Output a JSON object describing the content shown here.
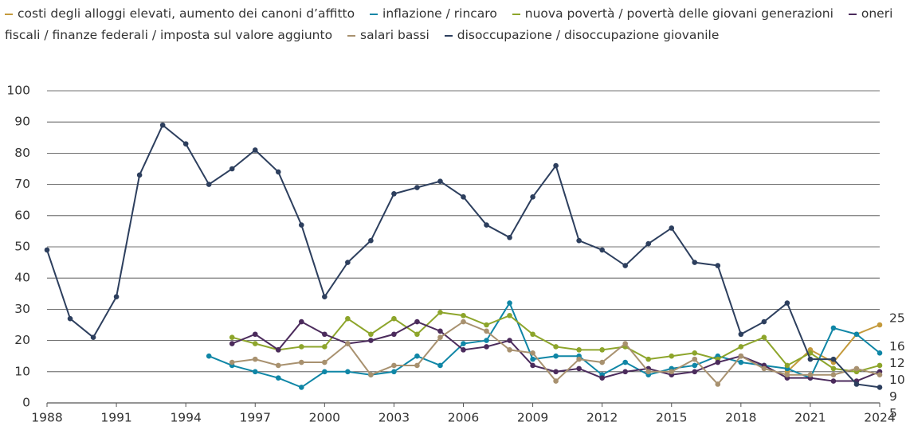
{
  "chart_data": {
    "type": "line",
    "x": [
      1988,
      1989,
      1990,
      1991,
      1992,
      1993,
      1994,
      1995,
      1996,
      1997,
      1998,
      1999,
      2000,
      2001,
      2002,
      2003,
      2004,
      2005,
      2006,
      2007,
      2008,
      2009,
      2010,
      2011,
      2012,
      2013,
      2014,
      2015,
      2016,
      2017,
      2018,
      2019,
      2020,
      2021,
      2022,
      2023,
      2024
    ],
    "xlim": [
      1988,
      2024
    ],
    "xticks": [
      1988,
      1991,
      1994,
      1997,
      2000,
      2003,
      2006,
      2009,
      2012,
      2015,
      2018,
      2021,
      2024
    ],
    "ylim": [
      0,
      100
    ],
    "yticks": [
      0,
      10,
      20,
      30,
      40,
      50,
      60,
      70,
      80,
      90,
      100
    ],
    "grid": true,
    "series": [
      {
        "name": "costi degli alloggi elevati, aumento dei canoni d’affitto",
        "color": "#c49a3c",
        "values": [
          null,
          null,
          null,
          null,
          null,
          null,
          null,
          null,
          null,
          null,
          null,
          null,
          null,
          null,
          null,
          null,
          null,
          null,
          null,
          null,
          null,
          null,
          null,
          null,
          null,
          null,
          null,
          null,
          null,
          null,
          null,
          null,
          10,
          17,
          13,
          22,
          25
        ]
      },
      {
        "name": "inflazione / rincaro",
        "color": "#0f86a6",
        "values": [
          null,
          null,
          null,
          null,
          null,
          null,
          null,
          15,
          12,
          10,
          8,
          5,
          10,
          10,
          9,
          10,
          15,
          12,
          19,
          20,
          32,
          14,
          15,
          15,
          9,
          13,
          9,
          11,
          12,
          15,
          13,
          12,
          11,
          8,
          24,
          22,
          16
        ]
      },
      {
        "name": "nuova povertà / povertà delle giovani generazioni",
        "color": "#8da52b",
        "values": [
          null,
          null,
          null,
          null,
          null,
          null,
          null,
          null,
          21,
          19,
          17,
          18,
          18,
          27,
          22,
          27,
          22,
          29,
          28,
          25,
          28,
          22,
          18,
          17,
          17,
          18,
          14,
          15,
          16,
          14,
          18,
          21,
          12,
          16,
          11,
          10,
          12
        ]
      },
      {
        "name": "oneri fiscali / finanze federali / imposta sul valore aggiunto",
        "color": "#4b2b5c",
        "values": [
          null,
          null,
          null,
          null,
          null,
          null,
          null,
          null,
          19,
          22,
          17,
          26,
          22,
          19,
          20,
          22,
          26,
          23,
          17,
          18,
          20,
          12,
          10,
          11,
          8,
          10,
          11,
          9,
          10,
          13,
          15,
          12,
          8,
          8,
          7,
          7,
          10
        ]
      },
      {
        "name": "salari bassi",
        "color": "#a8916f",
        "values": [
          null,
          null,
          null,
          null,
          null,
          null,
          null,
          null,
          13,
          14,
          12,
          13,
          13,
          19,
          9,
          12,
          12,
          21,
          26,
          23,
          17,
          16,
          7,
          14,
          13,
          19,
          10,
          10,
          14,
          6,
          15,
          11,
          9,
          9,
          9,
          11,
          9
        ]
      },
      {
        "name": "disoccupazione  / disoccupazione giovanile",
        "color": "#2d3f5e",
        "values": [
          49,
          27,
          21,
          34,
          73,
          89,
          83,
          70,
          75,
          81,
          74,
          57,
          34,
          45,
          52,
          67,
          69,
          71,
          66,
          57,
          53,
          66,
          76,
          52,
          49,
          44,
          51,
          56,
          45,
          44,
          22,
          26,
          32,
          14,
          14,
          6,
          5
        ]
      }
    ]
  }
}
